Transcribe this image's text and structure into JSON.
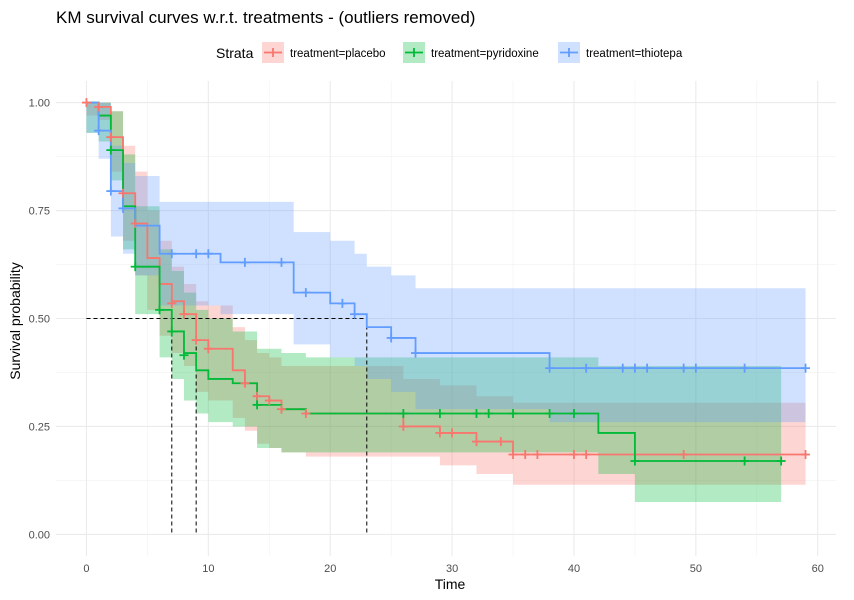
{
  "chart_data": {
    "type": "line",
    "subtype": "kaplan-meier step curves with confidence bands",
    "title": "KM survival curves w.r.t. treatments - (outliers removed)",
    "xlabel": "Time",
    "ylabel": "Survival probability",
    "xlim": [
      -2.5,
      61.5
    ],
    "ylim": [
      -0.05,
      1.05
    ],
    "x_ticks": [
      0,
      10,
      20,
      30,
      40,
      50,
      60
    ],
    "y_ticks": [
      0.0,
      0.25,
      0.5,
      0.75,
      1.0
    ],
    "y_tick_labels": [
      "0.00",
      "0.25",
      "0.50",
      "0.75",
      "1.00"
    ],
    "grid": true,
    "legend": {
      "title": "Strata",
      "position": "top"
    },
    "median_line": {
      "y": 0.5,
      "x_values": [
        7,
        9,
        23
      ]
    },
    "series": [
      {
        "name": "treatment=placebo",
        "color": "#F8766D",
        "steps": [
          [
            0,
            1.0
          ],
          [
            1,
            0.99
          ],
          [
            2,
            0.92
          ],
          [
            3,
            0.79
          ],
          [
            4,
            0.72
          ],
          [
            5,
            0.64
          ],
          [
            6,
            0.58
          ],
          [
            7,
            0.54
          ],
          [
            8,
            0.51
          ],
          [
            9,
            0.45
          ],
          [
            10,
            0.43
          ],
          [
            12,
            0.38
          ],
          [
            13,
            0.35
          ],
          [
            14,
            0.32
          ],
          [
            15,
            0.31
          ],
          [
            16,
            0.29
          ],
          [
            18,
            0.28
          ],
          [
            23,
            0.28
          ],
          [
            26,
            0.25
          ],
          [
            29,
            0.235
          ],
          [
            30,
            0.235
          ],
          [
            32,
            0.215
          ],
          [
            34,
            0.215
          ],
          [
            35,
            0.185
          ],
          [
            59,
            0.185
          ]
        ],
        "censored": [
          [
            0,
            1.0
          ],
          [
            1,
            0.99
          ],
          [
            2,
            0.92
          ],
          [
            3,
            0.79
          ],
          [
            4,
            0.72
          ],
          [
            7,
            0.535
          ],
          [
            8,
            0.51
          ],
          [
            9,
            0.45
          ],
          [
            10,
            0.43
          ],
          [
            13,
            0.35
          ],
          [
            14,
            0.32
          ],
          [
            15,
            0.31
          ],
          [
            16,
            0.29
          ],
          [
            18,
            0.28
          ],
          [
            26,
            0.25
          ],
          [
            29,
            0.235
          ],
          [
            30,
            0.235
          ],
          [
            32,
            0.215
          ],
          [
            34,
            0.215
          ],
          [
            35,
            0.185
          ],
          [
            36,
            0.185
          ],
          [
            37,
            0.185
          ],
          [
            40,
            0.185
          ],
          [
            41,
            0.185
          ],
          [
            49,
            0.185
          ],
          [
            59,
            0.185
          ]
        ],
        "ci_lower": [
          [
            0,
            0.97
          ],
          [
            1,
            0.96
          ],
          [
            2,
            0.84
          ],
          [
            3,
            0.68
          ],
          [
            4,
            0.6
          ],
          [
            5,
            0.52
          ],
          [
            6,
            0.46
          ],
          [
            7,
            0.42
          ],
          [
            8,
            0.39
          ],
          [
            9,
            0.33
          ],
          [
            10,
            0.31
          ],
          [
            12,
            0.27
          ],
          [
            13,
            0.24
          ],
          [
            14,
            0.21
          ],
          [
            15,
            0.2
          ],
          [
            16,
            0.19
          ],
          [
            18,
            0.18
          ],
          [
            26,
            0.18
          ],
          [
            29,
            0.16
          ],
          [
            32,
            0.14
          ],
          [
            35,
            0.115
          ],
          [
            59,
            0.115
          ]
        ],
        "ci_upper": [
          [
            0,
            1.0
          ],
          [
            1,
            1.0
          ],
          [
            2,
            0.98
          ],
          [
            3,
            0.9
          ],
          [
            4,
            0.84
          ],
          [
            5,
            0.75
          ],
          [
            6,
            0.68
          ],
          [
            7,
            0.62
          ],
          [
            8,
            0.58
          ],
          [
            9,
            0.54
          ],
          [
            10,
            0.53
          ],
          [
            12,
            0.48
          ],
          [
            13,
            0.45
          ],
          [
            14,
            0.42
          ],
          [
            15,
            0.41
          ],
          [
            16,
            0.39
          ],
          [
            18,
            0.39
          ],
          [
            26,
            0.36
          ],
          [
            29,
            0.345
          ],
          [
            32,
            0.32
          ],
          [
            35,
            0.305
          ],
          [
            59,
            0.305
          ]
        ]
      },
      {
        "name": "treatment=pyridoxine",
        "color": "#00BA38",
        "steps": [
          [
            0,
            1.0
          ],
          [
            1,
            0.97
          ],
          [
            2,
            0.89
          ],
          [
            3,
            0.76
          ],
          [
            4,
            0.62
          ],
          [
            6,
            0.52
          ],
          [
            7,
            0.47
          ],
          [
            8,
            0.42
          ],
          [
            9,
            0.38
          ],
          [
            10,
            0.36
          ],
          [
            12,
            0.35
          ],
          [
            14,
            0.3
          ],
          [
            16,
            0.29
          ],
          [
            18,
            0.28
          ],
          [
            26,
            0.28
          ],
          [
            42,
            0.235
          ],
          [
            45,
            0.17
          ],
          [
            57,
            0.17
          ]
        ],
        "censored": [
          [
            2,
            0.89
          ],
          [
            4,
            0.62
          ],
          [
            6,
            0.52
          ],
          [
            7,
            0.47
          ],
          [
            8,
            0.415
          ],
          [
            14,
            0.3
          ],
          [
            26,
            0.28
          ],
          [
            29,
            0.28
          ],
          [
            32,
            0.28
          ],
          [
            33,
            0.28
          ],
          [
            35,
            0.28
          ],
          [
            38,
            0.28
          ],
          [
            40,
            0.28
          ],
          [
            45,
            0.17
          ],
          [
            54,
            0.17
          ],
          [
            57,
            0.17
          ]
        ],
        "ci_lower": [
          [
            0,
            0.93
          ],
          [
            1,
            0.91
          ],
          [
            2,
            0.82
          ],
          [
            3,
            0.66
          ],
          [
            4,
            0.51
          ],
          [
            6,
            0.41
          ],
          [
            7,
            0.36
          ],
          [
            8,
            0.31
          ],
          [
            9,
            0.28
          ],
          [
            10,
            0.26
          ],
          [
            12,
            0.25
          ],
          [
            14,
            0.2
          ],
          [
            16,
            0.19
          ],
          [
            18,
            0.19
          ],
          [
            26,
            0.19
          ],
          [
            42,
            0.14
          ],
          [
            45,
            0.075
          ],
          [
            57,
            0.075
          ]
        ],
        "ci_upper": [
          [
            0,
            1.0
          ],
          [
            1,
            1.0
          ],
          [
            2,
            0.98
          ],
          [
            3,
            0.88
          ],
          [
            4,
            0.76
          ],
          [
            6,
            0.66
          ],
          [
            7,
            0.61
          ],
          [
            8,
            0.56
          ],
          [
            9,
            0.52
          ],
          [
            10,
            0.5
          ],
          [
            12,
            0.47
          ],
          [
            14,
            0.43
          ],
          [
            16,
            0.42
          ],
          [
            18,
            0.41
          ],
          [
            26,
            0.41
          ],
          [
            42,
            0.39
          ],
          [
            45,
            0.39
          ],
          [
            57,
            0.39
          ]
        ]
      },
      {
        "name": "treatment=thiotepa",
        "color": "#619CFF",
        "steps": [
          [
            0,
            1.0
          ],
          [
            1,
            0.935
          ],
          [
            2,
            0.795
          ],
          [
            3,
            0.755
          ],
          [
            4,
            0.715
          ],
          [
            6,
            0.65
          ],
          [
            11,
            0.63
          ],
          [
            16,
            0.63
          ],
          [
            17,
            0.56
          ],
          [
            20,
            0.535
          ],
          [
            22,
            0.51
          ],
          [
            23,
            0.48
          ],
          [
            25,
            0.455
          ],
          [
            27,
            0.42
          ],
          [
            38,
            0.385
          ],
          [
            59,
            0.385
          ]
        ],
        "censored": [
          [
            1,
            0.935
          ],
          [
            2,
            0.795
          ],
          [
            3,
            0.755
          ],
          [
            7,
            0.65
          ],
          [
            9,
            0.65
          ],
          [
            10,
            0.65
          ],
          [
            13,
            0.63
          ],
          [
            16,
            0.63
          ],
          [
            18,
            0.56
          ],
          [
            21,
            0.535
          ],
          [
            22,
            0.51
          ],
          [
            25,
            0.455
          ],
          [
            27,
            0.42
          ],
          [
            38,
            0.385
          ],
          [
            41,
            0.385
          ],
          [
            44,
            0.385
          ],
          [
            45,
            0.385
          ],
          [
            46,
            0.385
          ],
          [
            49,
            0.385
          ],
          [
            50,
            0.385
          ],
          [
            54,
            0.385
          ],
          [
            59,
            0.385
          ]
        ],
        "ci_lower": [
          [
            0,
            0.93
          ],
          [
            1,
            0.87
          ],
          [
            2,
            0.69
          ],
          [
            3,
            0.65
          ],
          [
            4,
            0.6
          ],
          [
            6,
            0.53
          ],
          [
            11,
            0.51
          ],
          [
            16,
            0.51
          ],
          [
            17,
            0.44
          ],
          [
            20,
            0.41
          ],
          [
            22,
            0.39
          ],
          [
            23,
            0.36
          ],
          [
            25,
            0.33
          ],
          [
            27,
            0.29
          ],
          [
            38,
            0.26
          ],
          [
            59,
            0.26
          ]
        ],
        "ci_upper": [
          [
            0,
            1.0
          ],
          [
            1,
            1.0
          ],
          [
            2,
            0.9
          ],
          [
            3,
            0.86
          ],
          [
            4,
            0.83
          ],
          [
            6,
            0.77
          ],
          [
            11,
            0.77
          ],
          [
            16,
            0.77
          ],
          [
            17,
            0.7
          ],
          [
            20,
            0.68
          ],
          [
            22,
            0.65
          ],
          [
            23,
            0.62
          ],
          [
            25,
            0.6
          ],
          [
            27,
            0.57
          ],
          [
            38,
            0.57
          ],
          [
            59,
            0.57
          ]
        ]
      }
    ]
  }
}
